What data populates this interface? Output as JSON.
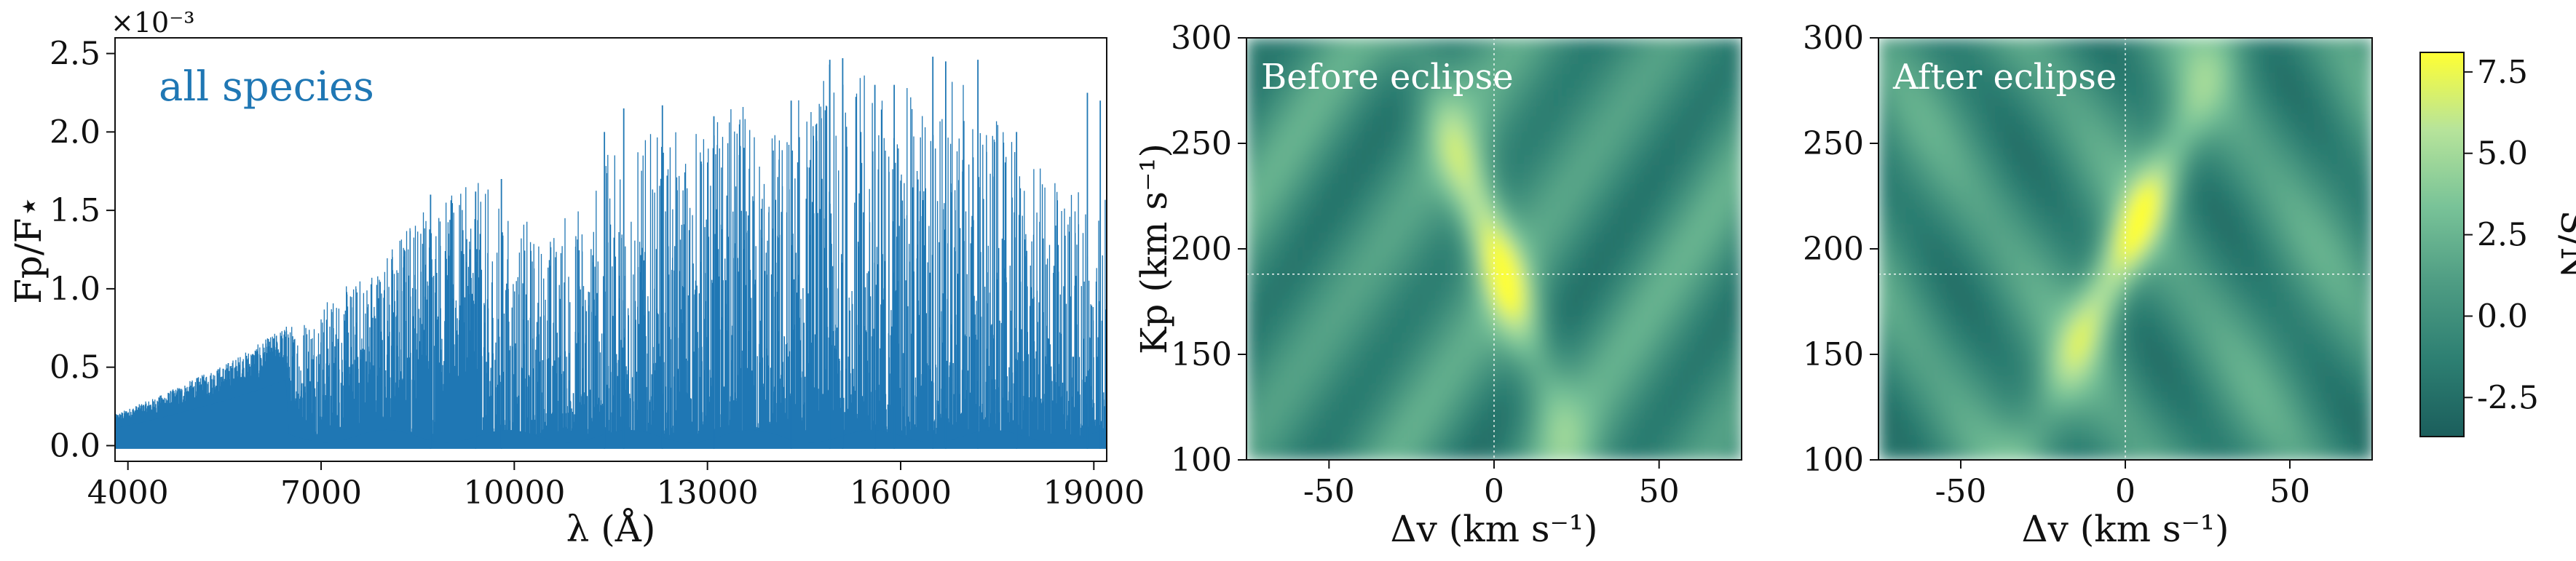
{
  "chart_data": [
    {
      "type": "area",
      "annotation": "all species",
      "xlabel": "λ (Å)",
      "ylabel": "Fp/F⋆",
      "y_multiplier": "×10⁻³",
      "xlim": [
        3800,
        19200
      ],
      "ylim": [
        -0.1,
        2.6
      ],
      "xticks": [
        4000,
        7000,
        10000,
        13000,
        16000,
        19000
      ],
      "yticks": [
        0.0,
        0.5,
        1.0,
        1.5,
        2.0,
        2.5
      ],
      "color": "#1f77b4",
      "envelope": [
        [
          3800,
          0.2
        ],
        [
          4500,
          0.32
        ],
        [
          5000,
          0.42
        ],
        [
          5500,
          0.52
        ],
        [
          6000,
          0.64
        ],
        [
          6500,
          0.78
        ],
        [
          7000,
          0.92
        ],
        [
          7500,
          1.05
        ],
        [
          8000,
          1.25
        ],
        [
          8500,
          1.55
        ],
        [
          9000,
          1.6
        ],
        [
          9500,
          1.7
        ],
        [
          10000,
          1.48
        ],
        [
          10500,
          1.4
        ],
        [
          11000,
          1.6
        ],
        [
          11500,
          1.9
        ],
        [
          12000,
          2.0
        ],
        [
          12500,
          2.0
        ],
        [
          13000,
          2.1
        ],
        [
          13500,
          2.2
        ],
        [
          14000,
          2.1
        ],
        [
          15000,
          2.47
        ],
        [
          16000,
          2.3
        ],
        [
          17000,
          2.35
        ],
        [
          18000,
          1.8
        ],
        [
          19200,
          1.7
        ]
      ],
      "peaks": [
        [
          8700,
          1.6
        ],
        [
          9400,
          1.62
        ],
        [
          9800,
          1.7
        ],
        [
          11400,
          2.0
        ],
        [
          11700,
          2.15
        ],
        [
          12300,
          2.17
        ],
        [
          13100,
          2.1
        ],
        [
          14300,
          2.2
        ],
        [
          14900,
          2.46
        ],
        [
          15100,
          2.47
        ],
        [
          15600,
          2.3
        ],
        [
          15900,
          2.3
        ],
        [
          16500,
          2.48
        ],
        [
          16700,
          2.45
        ],
        [
          17200,
          2.46
        ],
        [
          17800,
          2.0
        ],
        [
          18900,
          2.25
        ],
        [
          19100,
          2.2
        ]
      ]
    },
    {
      "type": "heatmap",
      "label": "Before eclipse",
      "xlabel": "Δv (km s⁻¹)",
      "ylabel": "Kp (km s⁻¹)",
      "xlim": [
        -75,
        75
      ],
      "ylim": [
        100,
        300
      ],
      "xticks": [
        -50,
        0,
        50
      ],
      "yticks": [
        100,
        150,
        200,
        250,
        300
      ],
      "crosshair": {
        "dv": 0,
        "kp": 188
      },
      "peak_snr": 7.8,
      "ridge": {
        "kp_center": 200,
        "dv_at_center": 0,
        "slope_dv_per_kp": -0.23
      }
    },
    {
      "type": "heatmap",
      "label": "After eclipse",
      "xlabel": "Δv (km s⁻¹)",
      "xlim": [
        -75,
        75
      ],
      "ylim": [
        100,
        300
      ],
      "xticks": [
        -50,
        0,
        50
      ],
      "yticks": [
        100,
        150,
        200,
        250,
        300
      ],
      "crosshair": {
        "dv": 0,
        "kp": 188
      },
      "peak_snr": 7.5,
      "ridge": {
        "kp_center": 200,
        "dv_at_center": 0,
        "slope_dv_per_kp": 0.3
      }
    },
    {
      "type": "colorbar",
      "label": "S/N",
      "range": [
        -3.7,
        8.1
      ],
      "ticks": [
        -2.5,
        0.0,
        2.5,
        5.0,
        7.5
      ],
      "tick_labels": [
        "-2.5",
        "0.0",
        "2.5",
        "5.0",
        "7.5"
      ],
      "colormap": [
        "#1b5e5c",
        "#2d7f72",
        "#4e9c83",
        "#79c398",
        "#b7e49a",
        "#ffff33"
      ]
    }
  ]
}
